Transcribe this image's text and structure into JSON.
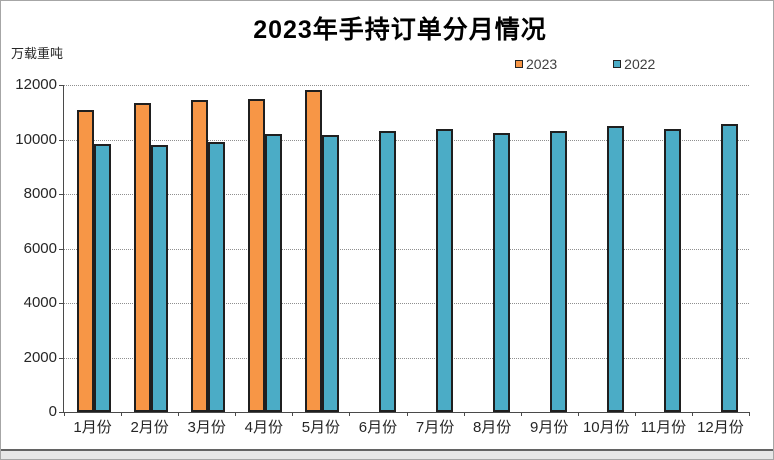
{
  "chart_data": {
    "type": "bar",
    "title": "2023年手持订单分月情况",
    "unit_label": "万载重吨",
    "categories": [
      "1月份",
      "2月份",
      "3月份",
      "4月份",
      "5月份",
      "6月份",
      "7月份",
      "8月份",
      "9月份",
      "10月份",
      "11月份",
      "12月份"
    ],
    "series": [
      {
        "name": "2023",
        "color": "#F79646",
        "values": [
          11100,
          11350,
          11450,
          11500,
          11800,
          null,
          null,
          null,
          null,
          null,
          null,
          null
        ]
      },
      {
        "name": "2022",
        "color": "#4BACC6",
        "values": [
          9850,
          9780,
          9900,
          10200,
          10180,
          10300,
          10400,
          10240,
          10300,
          10480,
          10380,
          10570
        ]
      }
    ],
    "ylim": [
      0,
      12000
    ],
    "ytick_step": 2000,
    "ytick_labels": [
      "0",
      "2000",
      "4000",
      "6000",
      "8000",
      "10000",
      "12000"
    ],
    "grid": "horizontal-dotted",
    "legend_position": "top-right",
    "bar_border_color": "#1F1F1F",
    "gridline_color": "#8f8f8f",
    "axis_color": "#4a4a4a",
    "text_color": "#262626",
    "xlabel": "",
    "ylabel": "万载重吨"
  }
}
